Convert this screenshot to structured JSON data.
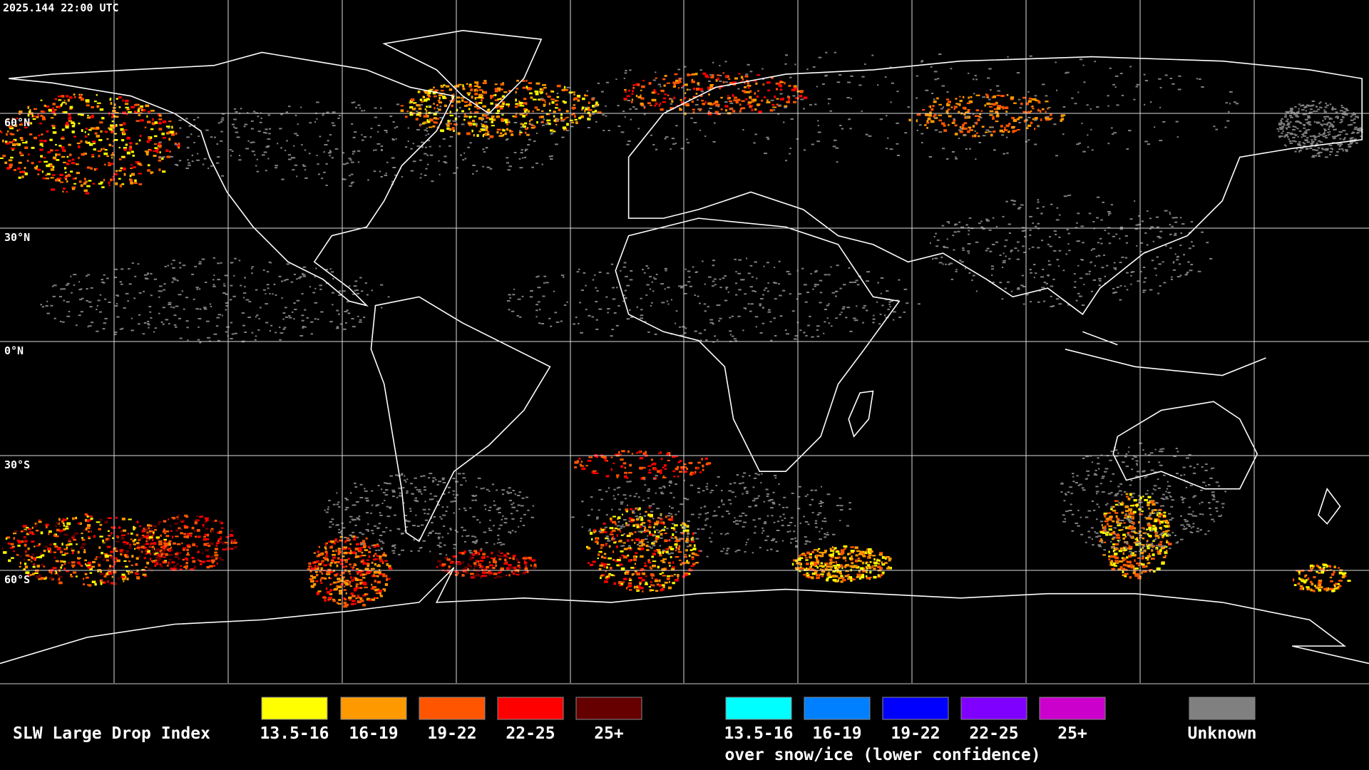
{
  "header": {
    "timestamp": "2025.144 22:00 UTC"
  },
  "latitude_labels": [
    "60°N",
    "30°N",
    "0°N",
    "30°S",
    "60°S"
  ],
  "legend": {
    "title": "SLW Large Drop Index",
    "items": [
      {
        "label": "13.5-16",
        "color": "#ffff00"
      },
      {
        "label": "16-19",
        "color": "#ff9900"
      },
      {
        "label": "19-22",
        "color": "#ff5500"
      },
      {
        "label": "22-25",
        "color": "#ff0000"
      },
      {
        "label": "25+",
        "color": "#660000"
      }
    ],
    "snow_items": [
      {
        "label": "13.5-16",
        "color": "#00ffff"
      },
      {
        "label": "16-19",
        "color": "#0080ff"
      },
      {
        "label": "19-22",
        "color": "#0000ff"
      },
      {
        "label": "22-25",
        "color": "#8000ff"
      },
      {
        "label": "25+",
        "color": "#cc00cc"
      }
    ],
    "snow_caption": "over snow/ice (lower confidence)",
    "unknown": {
      "label": "Unknown",
      "color": "#808080"
    }
  }
}
